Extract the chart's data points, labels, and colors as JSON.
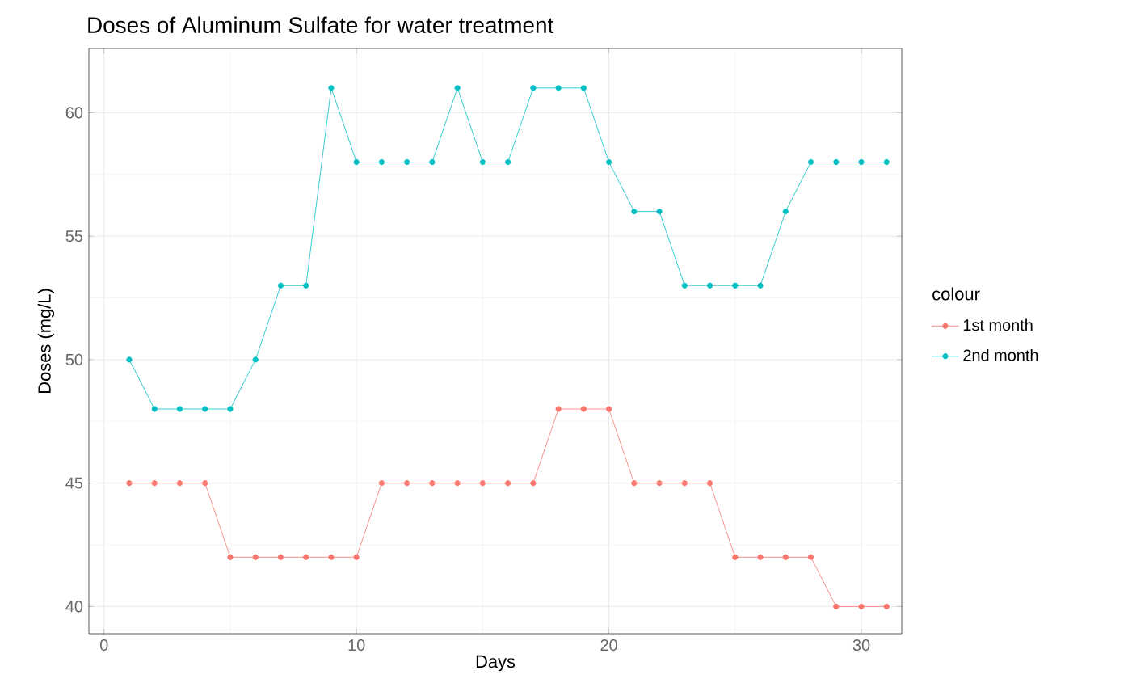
{
  "chart_data": {
    "type": "line",
    "title": "Doses of Aluminum Sulfate for water treatment",
    "xlabel": "Days",
    "ylabel": "Doses (mg/L)",
    "legend_title": "colour",
    "x": [
      1,
      2,
      3,
      4,
      5,
      6,
      7,
      8,
      9,
      10,
      11,
      12,
      13,
      14,
      15,
      16,
      17,
      18,
      19,
      20,
      21,
      22,
      23,
      24,
      25,
      26,
      27,
      28,
      29,
      30,
      31
    ],
    "series": [
      {
        "name": "1st month",
        "color": "#f8766d",
        "values": [
          45,
          45,
          45,
          45,
          42,
          42,
          42,
          42,
          42,
          42,
          45,
          45,
          45,
          45,
          45,
          45,
          45,
          48,
          48,
          48,
          45,
          45,
          45,
          45,
          42,
          42,
          42,
          42,
          40,
          40,
          40
        ]
      },
      {
        "name": "2nd month",
        "color": "#00bfc4",
        "values": [
          50,
          48,
          48,
          48,
          48,
          50,
          53,
          53,
          61,
          58,
          58,
          58,
          58,
          61,
          58,
          58,
          61,
          61,
          61,
          58,
          56,
          56,
          53,
          53,
          53,
          53,
          56,
          58,
          58,
          58,
          58
        ]
      }
    ],
    "xlim": [
      -0.6,
      31.6
    ],
    "ylim": [
      38.9,
      62.6
    ],
    "xticks": [
      0,
      10,
      20,
      30
    ],
    "yticks": [
      40,
      45,
      50,
      55,
      60
    ],
    "grid": true,
    "legend": "right",
    "marker": "circle",
    "line_style": "solid"
  }
}
